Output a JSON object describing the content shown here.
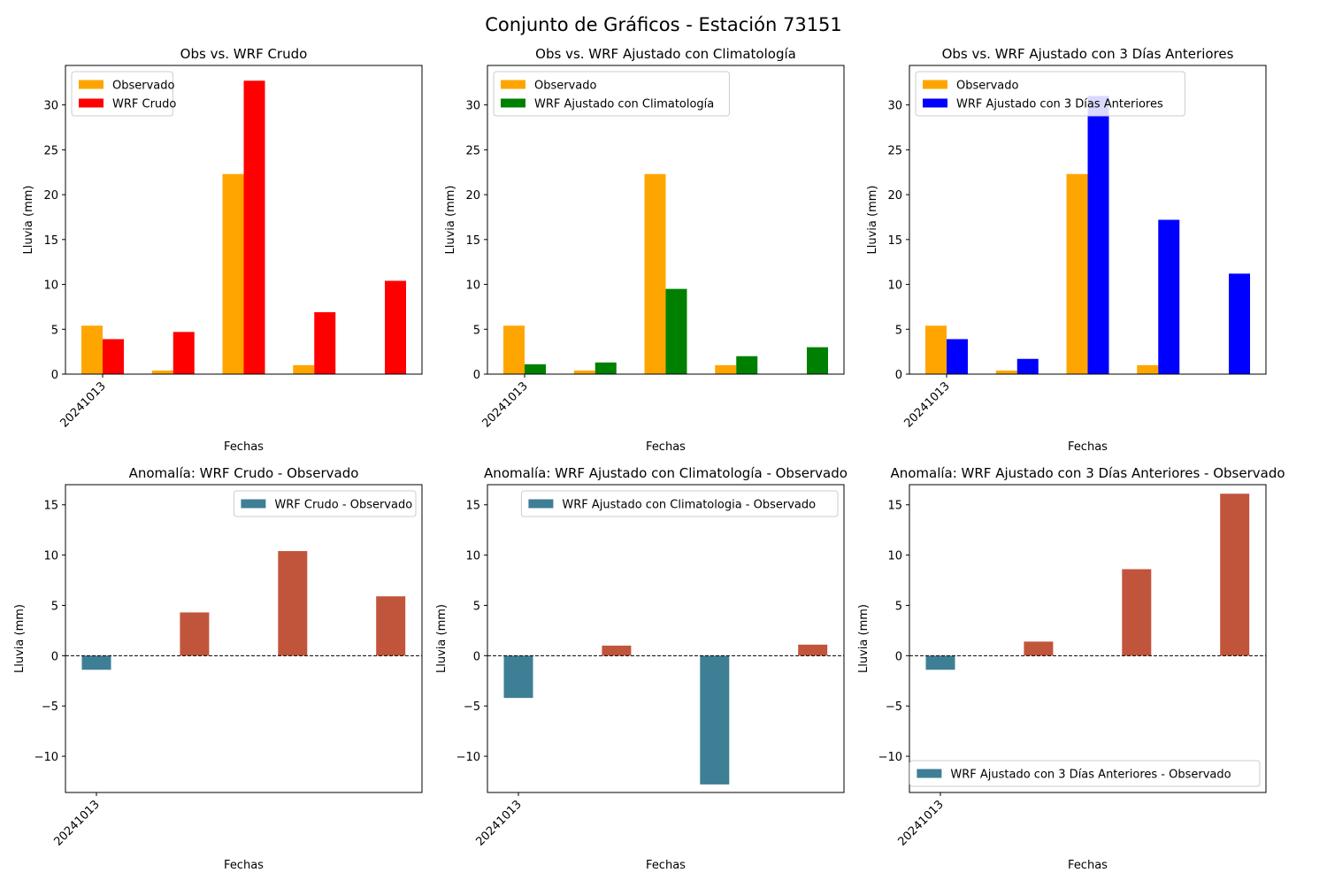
{
  "suptitle": "Conjunto de Gráficos - Estación 73151",
  "chart_data": [
    {
      "type": "bar",
      "title": "Obs vs. WRF Crudo",
      "xlabel": "Fechas",
      "ylabel": "Lluvia (mm)",
      "xtick_labels": [
        "20241013"
      ],
      "ylim": [
        0,
        34.4
      ],
      "yticks": [
        0,
        5,
        10,
        15,
        20,
        25,
        30
      ],
      "legend_position": "upper-left",
      "series": [
        {
          "name": "Observado",
          "color": "#FFA500",
          "values": [
            5.4,
            0.4,
            22.3,
            1.0,
            0.0
          ]
        },
        {
          "name": "WRF Crudo",
          "color": "#FF0000",
          "values": [
            3.9,
            4.7,
            32.7,
            6.9,
            10.4
          ]
        }
      ]
    },
    {
      "type": "bar",
      "title": "Obs vs. WRF Ajustado con Climatología",
      "xlabel": "Fechas",
      "ylabel": "Lluvia (mm)",
      "xtick_labels": [
        "20241013"
      ],
      "ylim": [
        0,
        34.4
      ],
      "yticks": [
        0,
        5,
        10,
        15,
        20,
        25,
        30
      ],
      "legend_position": "upper-left",
      "series": [
        {
          "name": "Observado",
          "color": "#FFA500",
          "values": [
            5.4,
            0.4,
            22.3,
            1.0,
            0.0
          ]
        },
        {
          "name": "WRF Ajustado con Climatología",
          "color": "#008000",
          "values": [
            1.1,
            1.3,
            9.5,
            2.0,
            3.0
          ]
        }
      ]
    },
    {
      "type": "bar",
      "title": "Obs vs. WRF Ajustado con 3 Días Anteriores",
      "xlabel": "Fechas",
      "ylabel": "Lluvia (mm)",
      "xtick_labels": [
        "20241013"
      ],
      "ylim": [
        0,
        34.4
      ],
      "yticks": [
        0,
        5,
        10,
        15,
        20,
        25,
        30
      ],
      "legend_position": "upper-left",
      "series": [
        {
          "name": "Observado",
          "color": "#FFA500",
          "values": [
            5.4,
            0.4,
            22.3,
            1.0,
            0.0
          ]
        },
        {
          "name": "WRF Ajustado con 3 Días Anteriores",
          "color": "#0000FF",
          "values": [
            3.9,
            1.7,
            31.0,
            17.2,
            11.2
          ]
        }
      ]
    },
    {
      "type": "bar",
      "title": "Anomalía: WRF Crudo - Observado",
      "xlabel": "Fechas",
      "ylabel": "Lluvia (mm)",
      "xtick_labels": [
        "20241013"
      ],
      "ylim": [
        -13.6,
        17.0
      ],
      "yticks": [
        -10,
        -5,
        0,
        5,
        10,
        15
      ],
      "legend_position": "upper-right",
      "series": [
        {
          "name": "WRF Crudo - Observado",
          "values": [
            -1.4,
            4.3,
            10.4,
            5.9
          ],
          "color_negative": "#3E7F95",
          "color_positive": "#C1553C"
        }
      ]
    },
    {
      "type": "bar",
      "title": "Anomalía: WRF Ajustado con Climatología - Observado",
      "xlabel": "Fechas",
      "ylabel": "Lluvia (mm)",
      "xtick_labels": [
        "20241013"
      ],
      "ylim": [
        -13.6,
        17.0
      ],
      "yticks": [
        -10,
        -5,
        0,
        5,
        10,
        15
      ],
      "legend_position": "upper-right",
      "series": [
        {
          "name": "WRF Ajustado con Climatologia - Observado",
          "values": [
            -4.2,
            1.0,
            -12.8,
            1.1
          ],
          "color_negative": "#3E7F95",
          "color_positive": "#C1553C"
        }
      ]
    },
    {
      "type": "bar",
      "title": "Anomalía: WRF Ajustado con 3 Días Anteriores - Observado",
      "xlabel": "Fechas",
      "ylabel": "Lluvia (mm)",
      "xtick_labels": [
        "20241013"
      ],
      "ylim": [
        -13.6,
        17.0
      ],
      "yticks": [
        -10,
        -5,
        0,
        5,
        10,
        15
      ],
      "legend_position": "lower-right",
      "series": [
        {
          "name": "WRF Ajustado con 3 Días Anteriores - Observado",
          "values": [
            -1.4,
            1.4,
            8.6,
            16.1
          ],
          "color_negative": "#3E7F95",
          "color_positive": "#C1553C"
        }
      ]
    }
  ]
}
